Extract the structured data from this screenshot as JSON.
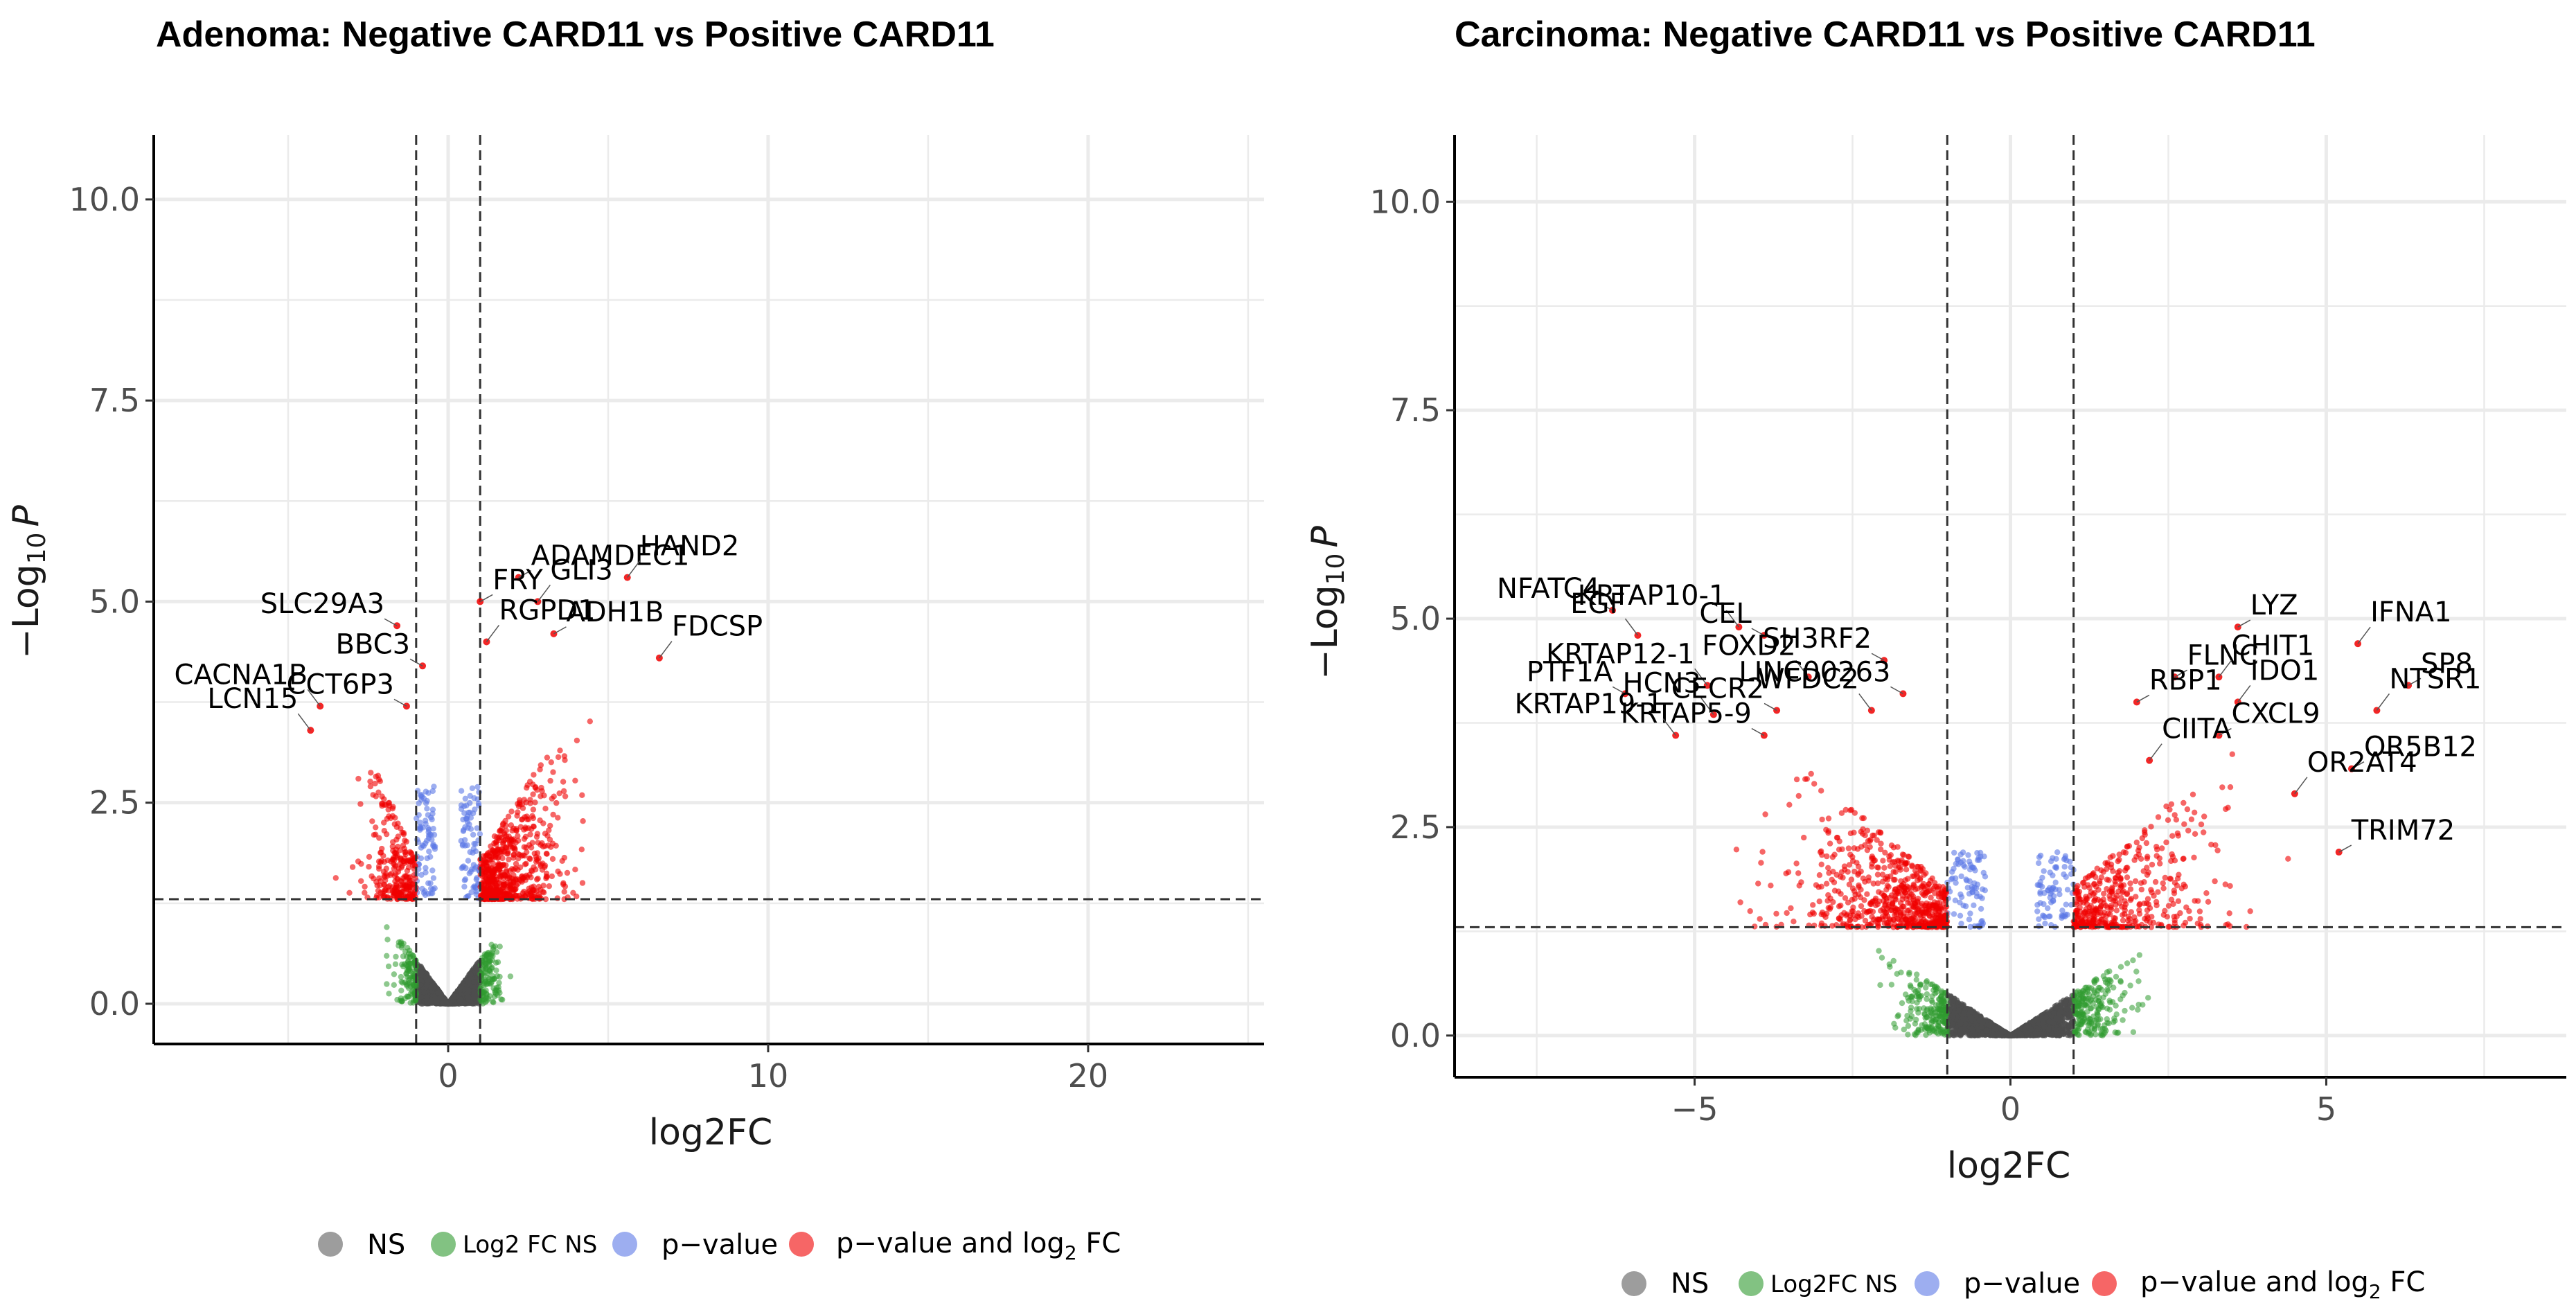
{
  "colors": {
    "ns": "#4d4d4d",
    "log2fc_ns": "#2f9a2f",
    "pvalue": "#5b78e6",
    "both": "#f00000",
    "grid": "#ebebeb",
    "axis": "#000000"
  },
  "chart_data": [
    {
      "type": "scatter",
      "title": "Adenoma: Negative CARD11 vs Positive CARD11",
      "xlabel": "log2FC",
      "ylabel": "−Log10 P",
      "ylabel_main": "−Log",
      "ylabel_sub": "10",
      "ylabel_p": "P",
      "xlim": [
        -9.2,
        25.5
      ],
      "ylim": [
        -0.5,
        10.8
      ],
      "xticks": [
        0,
        10,
        20
      ],
      "xtick_labels": [
        "0",
        "10",
        "20"
      ],
      "yticks": [
        0,
        2.5,
        5,
        7.5,
        10
      ],
      "ytick_labels": [
        "0.0",
        "2.5",
        "5.0",
        "7.5",
        "10.0"
      ],
      "fc_cutoff": 1,
      "p_cutoff_log10": 1.3,
      "cloud": {
        "x_min": -5.0,
        "x_max": 7.2,
        "y_max_both": 3.8
      },
      "labeled_points": [
        {
          "name": "ADAMDEC1",
          "x": 2.2,
          "y": 5.3
        },
        {
          "name": "HAND2",
          "x": 5.6,
          "y": 5.3
        },
        {
          "name": "FRY",
          "x": 1.0,
          "y": 5.0
        },
        {
          "name": "GLI3",
          "x": 2.8,
          "y": 5.0
        },
        {
          "name": "SLC29A3",
          "x": -1.6,
          "y": 4.7
        },
        {
          "name": "RGPD1",
          "x": 1.2,
          "y": 4.5
        },
        {
          "name": "ADH1B",
          "x": 3.3,
          "y": 4.6
        },
        {
          "name": "FDCSP",
          "x": 6.6,
          "y": 4.3
        },
        {
          "name": "BBC3",
          "x": -0.8,
          "y": 4.2
        },
        {
          "name": "CACNA1B",
          "x": -4.0,
          "y": 3.7
        },
        {
          "name": "CCT6P3",
          "x": -1.3,
          "y": 3.7
        },
        {
          "name": "LCN15",
          "x": -4.3,
          "y": 3.4
        }
      ]
    },
    {
      "type": "scatter",
      "title": "Carcinoma: Negative CARD11 vs Positive CARD11",
      "xlabel": "log2FC",
      "ylabel": "−Log10 P",
      "ylabel_main": "−Log",
      "ylabel_sub": "10",
      "ylabel_p": "P",
      "xlim": [
        -8.8,
        8.8
      ],
      "ylim": [
        -0.5,
        10.8
      ],
      "xticks": [
        -5,
        0,
        5
      ],
      "xtick_labels": [
        "−5",
        "0",
        "5"
      ],
      "yticks": [
        0,
        2.5,
        5,
        7.5,
        10
      ],
      "ytick_labels": [
        "0.0",
        "2.5",
        "5.0",
        "7.5",
        "10.0"
      ],
      "fc_cutoff": 1,
      "p_cutoff_log10": 1.3,
      "cloud": {
        "x_min": -6.5,
        "x_max": 6.2,
        "y_max_both": 3.6
      },
      "labeled_points": [
        {
          "name": "NFATC4",
          "x": -6.3,
          "y": 5.1
        },
        {
          "name": "KRTAP10-1",
          "x": -4.3,
          "y": 4.9
        },
        {
          "name": "CEL",
          "x": -3.9,
          "y": 4.8
        },
        {
          "name": "EGF",
          "x": -5.9,
          "y": 4.8
        },
        {
          "name": "SH3RF2",
          "x": -2.0,
          "y": 4.5
        },
        {
          "name": "FOXD2",
          "x": -3.2,
          "y": 4.3
        },
        {
          "name": "PTF1A",
          "x": -6.1,
          "y": 4.1
        },
        {
          "name": "KRTAP12-1",
          "x": -4.8,
          "y": 4.2
        },
        {
          "name": "LINC00263",
          "x": -1.7,
          "y": 4.1
        },
        {
          "name": "HCN3",
          "x": -4.7,
          "y": 3.85
        },
        {
          "name": "CECR2",
          "x": -3.7,
          "y": 3.9
        },
        {
          "name": "WFDC2",
          "x": -2.2,
          "y": 3.9
        },
        {
          "name": "KRTAP5-9",
          "x": -3.9,
          "y": 3.6
        },
        {
          "name": "KRTAP19-1",
          "x": -5.3,
          "y": 3.6
        },
        {
          "name": "LYZ",
          "x": 3.6,
          "y": 4.9
        },
        {
          "name": "IFNA1",
          "x": 5.5,
          "y": 4.7
        },
        {
          "name": "FLNC",
          "x": 2.6,
          "y": 4.3
        },
        {
          "name": "CHIT1",
          "x": 3.3,
          "y": 4.3
        },
        {
          "name": "SP8",
          "x": 6.3,
          "y": 4.2
        },
        {
          "name": "IDO1",
          "x": 3.6,
          "y": 4.0
        },
        {
          "name": "RBP1",
          "x": 2.0,
          "y": 4.0
        },
        {
          "name": "NTSR1",
          "x": 5.8,
          "y": 3.9
        },
        {
          "name": "CXCL9",
          "x": 3.3,
          "y": 3.6
        },
        {
          "name": "CIITA",
          "x": 2.2,
          "y": 3.3
        },
        {
          "name": "OR5B12",
          "x": 5.4,
          "y": 3.2
        },
        {
          "name": "OR2AT4",
          "x": 4.5,
          "y": 2.9
        },
        {
          "name": "TRIM72",
          "x": 5.2,
          "y": 2.2
        }
      ]
    }
  ],
  "legend": {
    "ns": "NS",
    "log2fc_ns": "Log2 FC NS",
    "log2fc_ns_alt": "Log2FC NS",
    "pvalue": "p−value",
    "both_prefix": "p−value and log",
    "both_sub": "2",
    "both_suffix": " FC"
  }
}
